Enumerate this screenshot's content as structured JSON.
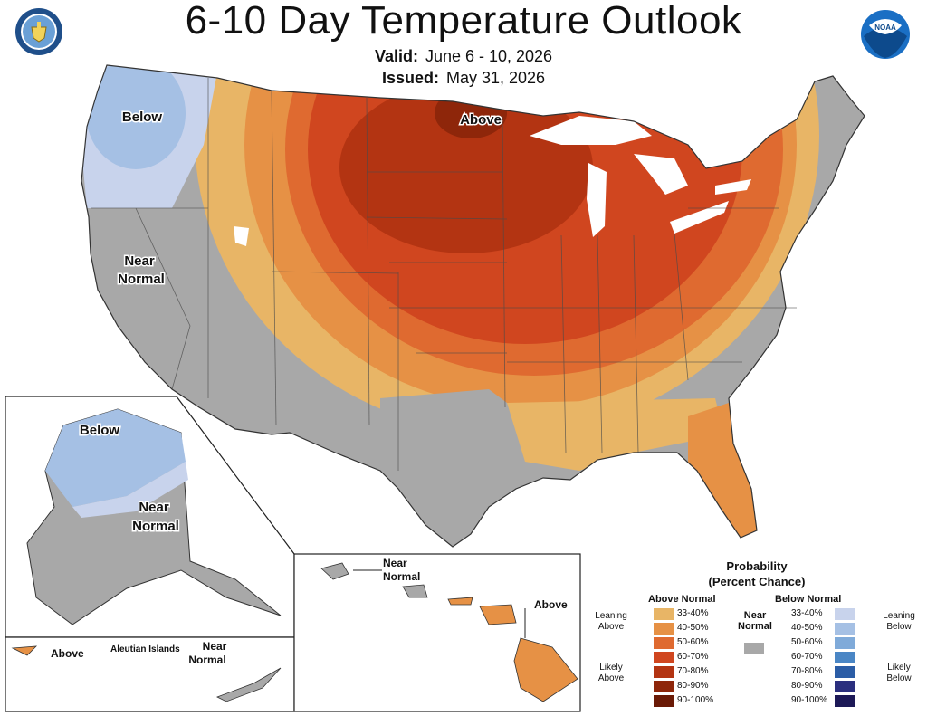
{
  "header": {
    "title": "6-10 Day Temperature Outlook",
    "valid_label": "Valid:",
    "valid_value": "June 6 - 10, 2026",
    "issued_label": "Issued:",
    "issued_value": "May 31, 2026"
  },
  "logos": {
    "left": "department-of-commerce-seal",
    "right": "noaa-logo",
    "right_text": "NOAA"
  },
  "colors": {
    "above_33_40": "#E8B566",
    "above_40_50": "#E69145",
    "above_50_60": "#DF6A30",
    "above_60_70": "#D0461F",
    "above_70_80": "#B33412",
    "above_80_90": "#8E260A",
    "above_90_100": "#6A1A06",
    "below_33_40": "#C8D3EC",
    "below_40_50": "#A5C0E4",
    "below_50_60": "#7FAAD9",
    "below_60_70": "#4A86C5",
    "below_70_80": "#2B5DA6",
    "below_80_90": "#2B2F7E",
    "below_90_100": "#1D1957",
    "near_normal": "#A8A8A8",
    "water": "#FFFFFF"
  },
  "map_labels": {
    "conus_below": "Below",
    "conus_above": "Above",
    "conus_near_1": "Near",
    "conus_near_2": "Normal",
    "alaska_below": "Below",
    "alaska_near_1": "Near",
    "alaska_near_2": "Normal",
    "aleutian_above": "Above",
    "aleutian_title": "Aleutian Islands",
    "aleutian_near_1": "Near",
    "aleutian_near_2": "Normal",
    "hawaii_near_1": "Near",
    "hawaii_near_2": "Normal",
    "hawaii_above": "Above"
  },
  "legend": {
    "title_1": "Probability",
    "title_2": "(Percent Chance)",
    "above_header": "Above Normal",
    "below_header": "Below Normal",
    "near_1": "Near",
    "near_2": "Normal",
    "leaning_above_1": "Leaning",
    "leaning_above_2": "Above",
    "likely_above_1": "Likely",
    "likely_above_2": "Above",
    "leaning_below_1": "Leaning",
    "leaning_below_2": "Below",
    "likely_below_1": "Likely",
    "likely_below_2": "Below",
    "above_ranges": [
      "33-40%",
      "40-50%",
      "50-60%",
      "60-70%",
      "70-80%",
      "80-90%",
      "90-100%"
    ],
    "below_ranges": [
      "33-40%",
      "40-50%",
      "50-60%",
      "60-70%",
      "70-80%",
      "80-90%",
      "90-100%"
    ]
  }
}
